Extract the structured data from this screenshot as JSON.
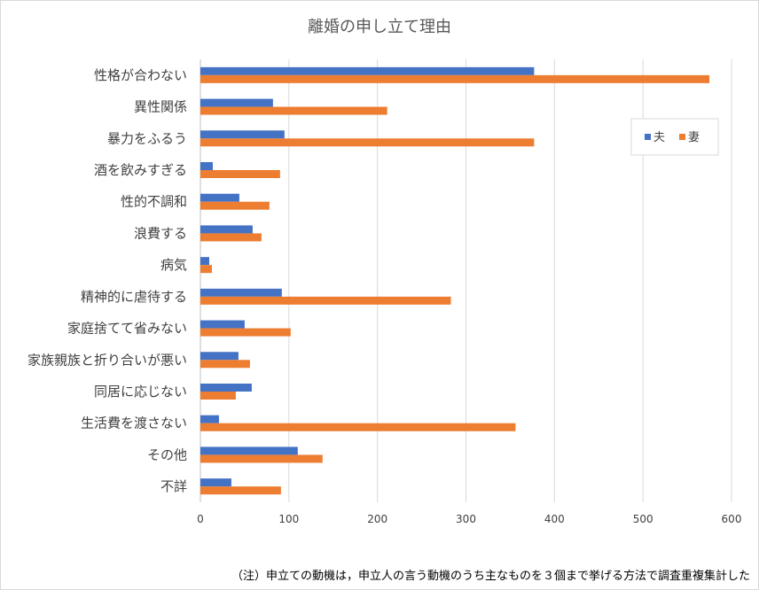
{
  "chart_data": {
    "type": "bar",
    "orientation": "horizontal",
    "title": "離婚の申し立て理由",
    "categories": [
      "性格が合わない",
      "異性関係",
      "暴力をふるう",
      "酒を飲みすぎる",
      "性的不調和",
      "浪費する",
      "病気",
      "精神的に虐待する",
      "家庭捨てて省みない",
      "家族親族と折り合いが悪い",
      "同居に応じない",
      "生活費を渡さない",
      "その他",
      "不詳"
    ],
    "series": [
      {
        "name": "夫",
        "color": "#4472C4",
        "values": [
          377,
          82,
          95,
          14,
          44,
          59,
          10,
          92,
          50,
          43,
          58,
          21,
          110,
          35
        ]
      },
      {
        "name": "妻",
        "color": "#ED7D31",
        "values": [
          575,
          211,
          377,
          90,
          78,
          69,
          13,
          283,
          102,
          56,
          40,
          356,
          138,
          91
        ]
      }
    ],
    "xlim": [
      0,
      600
    ],
    "xticks": [
      0,
      100,
      200,
      300,
      400,
      500,
      600
    ],
    "grid": true,
    "legend_position": "right"
  },
  "note": "（注）申立ての動機は，申立人の言う動機のうち主なものを３個まで挙げる方法で調査重複集計した"
}
